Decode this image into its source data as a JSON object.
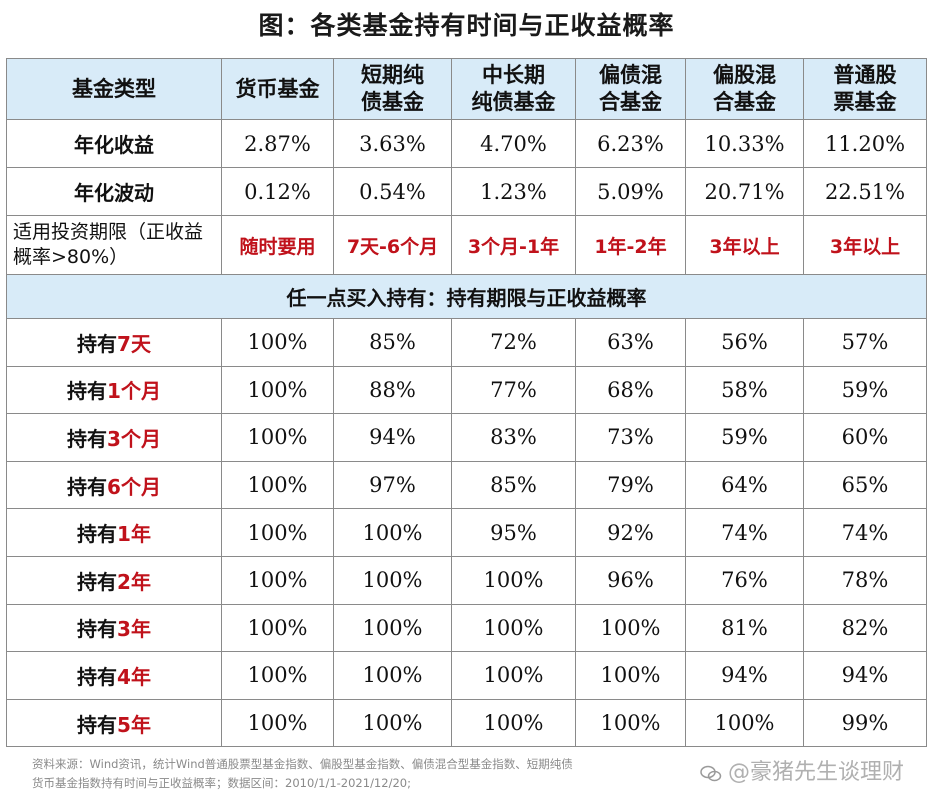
{
  "title": "图：各类基金持有时间与正收益概率",
  "header": {
    "label": "基金类型",
    "types": [
      "货币基金",
      "短期纯\n债基金",
      "中长期\n纯债基金",
      "偏债混\n合基金",
      "偏股混\n合基金",
      "普通股\n票基金"
    ]
  },
  "metrics": [
    {
      "label": "年化收益",
      "values": [
        "2.87%",
        "3.63%",
        "4.70%",
        "6.23%",
        "10.33%",
        "11.20%"
      ]
    },
    {
      "label": "年化波动",
      "values": [
        "0.12%",
        "0.54%",
        "1.23%",
        "5.09%",
        "20.71%",
        "22.51%"
      ]
    }
  ],
  "period_row": {
    "label": "适用投资期限（正收益概率>80%）",
    "values": [
      "随时要用",
      "7天-6个月",
      "3个月-1年",
      "1年-2年",
      "3年以上",
      "3年以上"
    ]
  },
  "section_title": "任一点买入持有：持有期限与正收益概率",
  "holdings": [
    {
      "prefix": "持有",
      "term": "7天",
      "values": [
        "100%",
        "85%",
        "72%",
        "63%",
        "56%",
        "57%"
      ]
    },
    {
      "prefix": "持有",
      "term": "1个月",
      "values": [
        "100%",
        "88%",
        "77%",
        "68%",
        "58%",
        "59%"
      ]
    },
    {
      "prefix": "持有",
      "term": "3个月",
      "values": [
        "100%",
        "94%",
        "83%",
        "73%",
        "59%",
        "60%"
      ]
    },
    {
      "prefix": "持有",
      "term": "6个月",
      "values": [
        "100%",
        "97%",
        "85%",
        "79%",
        "64%",
        "65%"
      ]
    },
    {
      "prefix": "持有",
      "term": "1年",
      "values": [
        "100%",
        "100%",
        "95%",
        "92%",
        "74%",
        "74%"
      ]
    },
    {
      "prefix": "持有",
      "term": "2年",
      "values": [
        "100%",
        "100%",
        "100%",
        "96%",
        "76%",
        "78%"
      ]
    },
    {
      "prefix": "持有",
      "term": "3年",
      "values": [
        "100%",
        "100%",
        "100%",
        "100%",
        "81%",
        "82%"
      ]
    },
    {
      "prefix": "持有",
      "term": "4年",
      "values": [
        "100%",
        "100%",
        "100%",
        "100%",
        "94%",
        "94%"
      ]
    },
    {
      "prefix": "持有",
      "term": "5年",
      "values": [
        "100%",
        "100%",
        "100%",
        "100%",
        "100%",
        "99%"
      ]
    }
  ],
  "footer": {
    "line1": "资料来源：Wind资讯，统计Wind普通股票型基金指数、偏股型基金指数、偏债混合型基金指数、短期纯债",
    "line2": "货币基金指数持有时间与正收益概率；数据区间：2010/1/1-2021/12/20;"
  },
  "watermark": "@豪猪先生谈理财",
  "watermark_icon": "wechat-icon"
}
